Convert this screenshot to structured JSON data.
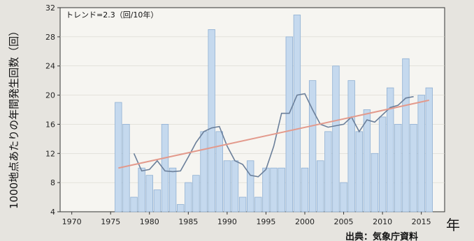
{
  "chart_data": {
    "type": "bar",
    "annotation": "トレンド=2.3（回/10年）",
    "ylabel": "1000地点あたりの年間発生回数（回）",
    "xunit": "年",
    "source": "出典：気象庁資料",
    "xlim": [
      1968.5,
      2018
    ],
    "ylim": [
      4,
      32
    ],
    "yticks": [
      "4",
      "8",
      "12",
      "16",
      "20",
      "24",
      "28",
      "32"
    ],
    "xticks": [
      "1970",
      "1975",
      "1980",
      "1985",
      "1990",
      "1995",
      "2000",
      "2005",
      "2010",
      "2015"
    ],
    "colors": {
      "bar": "#c5d9ee",
      "bar_edge": "#8fb0d3",
      "moving_avg": "#6b7f9a",
      "trend": "#e39a8c"
    },
    "series": [
      {
        "type": "bar",
        "years": [
          1976,
          1977,
          1978,
          1979,
          1980,
          1981,
          1982,
          1983,
          1984,
          1985,
          1986,
          1987,
          1988,
          1989,
          1990,
          1991,
          1992,
          1993,
          1994,
          1995,
          1996,
          1997,
          1998,
          1999,
          2000,
          2001,
          2002,
          2003,
          2004,
          2005,
          2006,
          2007,
          2008,
          2009,
          2010,
          2011,
          2012,
          2013,
          2014,
          2015,
          2016
        ],
        "values": [
          19,
          16,
          6,
          10,
          9,
          7,
          16,
          10,
          5,
          8,
          9,
          15,
          29,
          15,
          11,
          11,
          6,
          11,
          6,
          10,
          10,
          10,
          28,
          31,
          10,
          22,
          11,
          15,
          24,
          8,
          22,
          15,
          18,
          12,
          17,
          21,
          16,
          25,
          16,
          20,
          21
        ]
      },
      {
        "type": "line",
        "years": [
          1978,
          1979,
          1980,
          1981,
          1982,
          1983,
          1984,
          1985,
          1986,
          1987,
          1988,
          1989,
          1990,
          1991,
          1992,
          1993,
          1994,
          1995,
          1996,
          1997,
          1998,
          1999,
          2000,
          2001,
          2002,
          2003,
          2004,
          2005,
          2006,
          2007,
          2008,
          2009,
          2010,
          2011,
          2012,
          2013,
          2014
        ],
        "values": [
          12,
          9.6,
          9.8,
          11,
          9.6,
          9.5,
          9.6,
          11.5,
          13.5,
          15,
          15.5,
          15.7,
          13,
          11,
          10.5,
          9,
          8.8,
          9.8,
          13,
          17.5,
          17.5,
          20,
          20.2,
          18,
          16,
          15.6,
          15.8,
          16,
          17,
          15,
          16.6,
          16.3,
          17.3,
          18.3,
          18.6,
          19.6,
          19.8
        ]
      },
      {
        "type": "trend",
        "years": [
          1976,
          2016
        ],
        "values": [
          10,
          19.3
        ]
      }
    ]
  }
}
